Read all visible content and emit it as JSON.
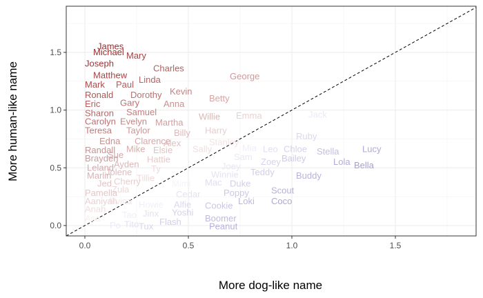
{
  "chart_data": {
    "type": "scatter",
    "title": "",
    "xlabel": "More dog-like name",
    "ylabel": "More human-like name",
    "xlim": [
      -0.09,
      1.89
    ],
    "ylim": [
      -0.09,
      1.9
    ],
    "x_ticks": [
      0.0,
      0.5,
      1.0,
      1.5
    ],
    "y_ticks": [
      0.0,
      0.5,
      1.0,
      1.5
    ],
    "x_tick_labels": [
      "0.0",
      "0.5",
      "1.0",
      "1.5"
    ],
    "y_tick_labels": [
      "0.0",
      "0.5",
      "1.0",
      "1.5"
    ],
    "grid": true,
    "reference_line": {
      "slope": 1,
      "intercept": 0,
      "style": "dashed"
    },
    "color_scale": {
      "human_like": "#9a2f2f",
      "neutral": "#ffffff",
      "dog_like": "#6b63b5"
    },
    "points": [
      {
        "label": "James",
        "x": 0.06,
        "y": 1.55
      },
      {
        "label": "Michael",
        "x": 0.04,
        "y": 1.5
      },
      {
        "label": "Mary",
        "x": 0.2,
        "y": 1.47
      },
      {
        "label": "Joseph",
        "x": 0.0,
        "y": 1.4
      },
      {
        "label": "Charles",
        "x": 0.33,
        "y": 1.36
      },
      {
        "label": "Matthew",
        "x": 0.04,
        "y": 1.3
      },
      {
        "label": "Linda",
        "x": 0.26,
        "y": 1.26
      },
      {
        "label": "George",
        "x": 0.7,
        "y": 1.29
      },
      {
        "label": "Mark",
        "x": 0.0,
        "y": 1.22
      },
      {
        "label": "Paul",
        "x": 0.15,
        "y": 1.22
      },
      {
        "label": "Kevin",
        "x": 0.41,
        "y": 1.16
      },
      {
        "label": "Ronald",
        "x": 0.0,
        "y": 1.13
      },
      {
        "label": "Dorothy",
        "x": 0.22,
        "y": 1.13
      },
      {
        "label": "Betty",
        "x": 0.6,
        "y": 1.1
      },
      {
        "label": "Eric",
        "x": 0.0,
        "y": 1.05
      },
      {
        "label": "Gary",
        "x": 0.17,
        "y": 1.06
      },
      {
        "label": "Anna",
        "x": 0.38,
        "y": 1.05
      },
      {
        "label": "Sharon",
        "x": 0.0,
        "y": 0.97
      },
      {
        "label": "Samuel",
        "x": 0.2,
        "y": 0.98
      },
      {
        "label": "Jack",
        "x": 1.08,
        "y": 0.96
      },
      {
        "label": "Emma",
        "x": 0.73,
        "y": 0.95
      },
      {
        "label": "Willie",
        "x": 0.55,
        "y": 0.94
      },
      {
        "label": "Carolyn",
        "x": 0.0,
        "y": 0.9
      },
      {
        "label": "Evelyn",
        "x": 0.17,
        "y": 0.9
      },
      {
        "label": "Martha",
        "x": 0.34,
        "y": 0.89
      },
      {
        "label": "Teresa",
        "x": 0.0,
        "y": 0.82
      },
      {
        "label": "Taylor",
        "x": 0.2,
        "y": 0.82
      },
      {
        "label": "Harry",
        "x": 0.58,
        "y": 0.82
      },
      {
        "label": "Billy",
        "x": 0.43,
        "y": 0.8
      },
      {
        "label": "Ruby",
        "x": 1.02,
        "y": 0.77
      },
      {
        "label": "Edna",
        "x": 0.07,
        "y": 0.73
      },
      {
        "label": "Clarence",
        "x": 0.24,
        "y": 0.73
      },
      {
        "label": "Alex",
        "x": 0.38,
        "y": 0.71
      },
      {
        "label": "Stanley",
        "x": 0.6,
        "y": 0.72
      },
      {
        "label": "Randall",
        "x": 0.0,
        "y": 0.65
      },
      {
        "label": "Mike",
        "x": 0.2,
        "y": 0.66
      },
      {
        "label": "Elsie",
        "x": 0.33,
        "y": 0.65
      },
      {
        "label": "Sally",
        "x": 0.52,
        "y": 0.66
      },
      {
        "label": "Mia",
        "x": 0.76,
        "y": 0.67
      },
      {
        "label": "Leo",
        "x": 0.86,
        "y": 0.66
      },
      {
        "label": "Chloe",
        "x": 0.96,
        "y": 0.66
      },
      {
        "label": "Stella",
        "x": 1.12,
        "y": 0.64
      },
      {
        "label": "Lucy",
        "x": 1.34,
        "y": 0.66
      },
      {
        "label": "Brayden",
        "x": 0.0,
        "y": 0.58
      },
      {
        "label": "Sue",
        "x": 0.11,
        "y": 0.61
      },
      {
        "label": "Hattie",
        "x": 0.3,
        "y": 0.57
      },
      {
        "label": "Sam",
        "x": 0.72,
        "y": 0.59
      },
      {
        "label": "Bailey",
        "x": 0.95,
        "y": 0.58
      },
      {
        "label": "Lola",
        "x": 1.2,
        "y": 0.55
      },
      {
        "label": "Zoey",
        "x": 0.85,
        "y": 0.55
      },
      {
        "label": "Bella",
        "x": 1.3,
        "y": 0.52
      },
      {
        "label": "Leland",
        "x": 0.01,
        "y": 0.5
      },
      {
        "label": "Ayden",
        "x": 0.14,
        "y": 0.53
      },
      {
        "label": "Ty",
        "x": 0.32,
        "y": 0.49
      },
      {
        "label": "Joey",
        "x": 0.66,
        "y": 0.51
      },
      {
        "label": "Teddy",
        "x": 0.8,
        "y": 0.46
      },
      {
        "label": "Jolene",
        "x": 0.1,
        "y": 0.46
      },
      {
        "label": "Winnie",
        "x": 0.61,
        "y": 0.44
      },
      {
        "label": "Buddy",
        "x": 1.02,
        "y": 0.43
      },
      {
        "label": "Marlin",
        "x": 0.01,
        "y": 0.43
      },
      {
        "label": "Tillie",
        "x": 0.25,
        "y": 0.41
      },
      {
        "label": "Jed",
        "x": 0.06,
        "y": 0.36
      },
      {
        "label": "Cherry",
        "x": 0.14,
        "y": 0.38
      },
      {
        "label": "Mimi",
        "x": 0.42,
        "y": 0.36
      },
      {
        "label": "Mac",
        "x": 0.58,
        "y": 0.37
      },
      {
        "label": "Duke",
        "x": 0.7,
        "y": 0.36
      },
      {
        "label": "Zula",
        "x": 0.13,
        "y": 0.31
      },
      {
        "label": "Scout",
        "x": 0.9,
        "y": 0.3
      },
      {
        "label": "Pamella",
        "x": 0.0,
        "y": 0.28
      },
      {
        "label": "Poppy",
        "x": 0.67,
        "y": 0.28
      },
      {
        "label": "Cedar",
        "x": 0.44,
        "y": 0.27
      },
      {
        "label": "Aaniyah",
        "x": 0.0,
        "y": 0.21
      },
      {
        "label": "Alvina",
        "x": 0.11,
        "y": 0.21
      },
      {
        "label": "Coco",
        "x": 0.9,
        "y": 0.21
      },
      {
        "label": "Loki",
        "x": 0.74,
        "y": 0.21
      },
      {
        "label": "Alfie",
        "x": 0.43,
        "y": 0.18
      },
      {
        "label": "Cookie",
        "x": 0.58,
        "y": 0.17
      },
      {
        "label": "Howie",
        "x": 0.26,
        "y": 0.18
      },
      {
        "label": "Anah",
        "x": 0.0,
        "y": 0.14
      },
      {
        "label": "Yoshi",
        "x": 0.42,
        "y": 0.11
      },
      {
        "label": "Jinx",
        "x": 0.28,
        "y": 0.1
      },
      {
        "label": "Tao",
        "x": 0.18,
        "y": 0.09
      },
      {
        "label": "Boomer",
        "x": 0.58,
        "y": 0.06
      },
      {
        "label": "Asa",
        "x": 0.0,
        "y": 0.06
      },
      {
        "label": "Flash",
        "x": 0.36,
        "y": 0.03
      },
      {
        "label": "Po",
        "x": 0.12,
        "y": 0.0
      },
      {
        "label": "Tito",
        "x": 0.19,
        "y": 0.01
      },
      {
        "label": "Tux",
        "x": 0.26,
        "y": -0.01
      },
      {
        "label": "Peanut",
        "x": 0.6,
        "y": -0.01
      }
    ]
  }
}
